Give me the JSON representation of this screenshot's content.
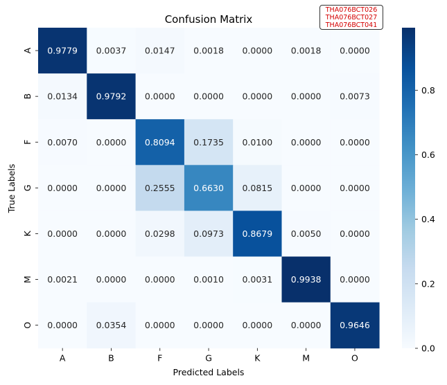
{
  "chart_data": {
    "type": "heatmap",
    "title": "Confusion Matrix",
    "xlabel": "Predicted Labels",
    "ylabel": "True Labels",
    "x_categories": [
      "A",
      "B",
      "F",
      "G",
      "K",
      "M",
      "O"
    ],
    "y_categories": [
      "A",
      "B",
      "F",
      "G",
      "K",
      "M",
      "O"
    ],
    "matrix": [
      [
        0.9779,
        0.0037,
        0.0147,
        0.0018,
        0.0,
        0.0018,
        0.0
      ],
      [
        0.0134,
        0.9792,
        0.0,
        0.0,
        0.0,
        0.0,
        0.0073
      ],
      [
        0.007,
        0.0,
        0.8094,
        0.1735,
        0.01,
        0.0,
        0.0
      ],
      [
        0.0,
        0.0,
        0.2555,
        0.663,
        0.0815,
        0.0,
        0.0
      ],
      [
        0.0,
        0.0,
        0.0298,
        0.0973,
        0.8679,
        0.005,
        0.0
      ],
      [
        0.0021,
        0.0,
        0.0,
        0.001,
        0.0031,
        0.9938,
        0.0
      ],
      [
        0.0,
        0.0354,
        0.0,
        0.0,
        0.0,
        0.0,
        0.9646
      ]
    ],
    "colormap": "Blues",
    "colorbar_range": [
      0.0,
      0.9938
    ],
    "colorbar_ticks": [
      "0.0",
      "0.2",
      "0.4",
      "0.6",
      "0.8"
    ]
  },
  "stamp": {
    "lines": [
      "THA076BCT026",
      "THA076BCT027",
      "THA076BCT041"
    ]
  }
}
